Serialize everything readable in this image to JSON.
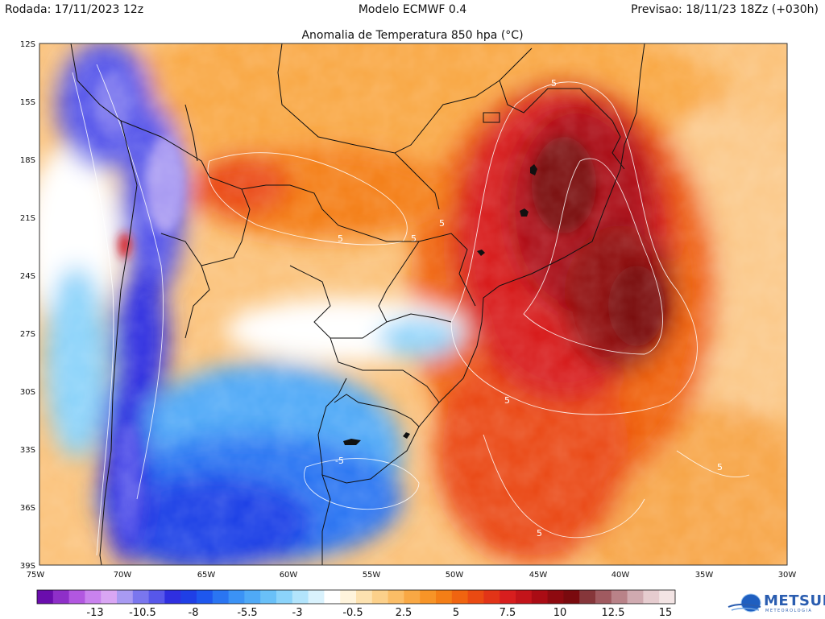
{
  "header": {
    "left": "Rodada: 17/11/2023 12z",
    "center": "Modelo ECMWF 0.4",
    "right": "Previsao: 18/11/23 18Zz (+030h)"
  },
  "map": {
    "title": "Anomalia de Temperatura 850 hpa (°C)",
    "lat_ticks": [
      "12S",
      "15S",
      "18S",
      "21S",
      "24S",
      "27S",
      "30S",
      "33S",
      "36S",
      "39S"
    ],
    "lon_ticks": [
      "75W",
      "70W",
      "65W",
      "60W",
      "55W",
      "50W",
      "45W",
      "40W",
      "35W",
      "30W"
    ],
    "extent": {
      "lon": [
        -75,
        -30
      ],
      "lat": [
        -39,
        -12
      ]
    },
    "contour_labels": [
      "5",
      "5",
      "5",
      "5",
      "5",
      "5",
      "5",
      "-5"
    ]
  },
  "colorbar": {
    "labels": [
      "-13",
      "-10.5",
      "-8",
      "-5.5",
      "-3",
      "-0.5",
      "2.5",
      "5",
      "7.5",
      "10",
      "12.5",
      "15"
    ],
    "colors": [
      "#6a0dad",
      "#8e2fc8",
      "#b257e0",
      "#c982ee",
      "#d9a6f4",
      "#a89af2",
      "#7a76ee",
      "#5757ea",
      "#2f2fe0",
      "#1f3fe6",
      "#1e57ee",
      "#2a75f2",
      "#3b92f5",
      "#4fa9f7",
      "#69c0f8",
      "#8bd3fa",
      "#b2e4fc",
      "#d9f2fd",
      "#ffffff",
      "#fff4dc",
      "#fde2b0",
      "#fcd08a",
      "#fbbd66",
      "#f9a844",
      "#f79427",
      "#f47e16",
      "#f06410",
      "#ea4a12",
      "#e23417",
      "#d81e1e",
      "#c3141a",
      "#aa0c14",
      "#8e0a10",
      "#7a0a0e",
      "#86363a",
      "#a05a60",
      "#b98288",
      "#d0aab0",
      "#e6cccf",
      "#f3e4e4"
    ]
  },
  "logo": {
    "name": "METSUL",
    "sub": "METEOROLOGIA"
  }
}
